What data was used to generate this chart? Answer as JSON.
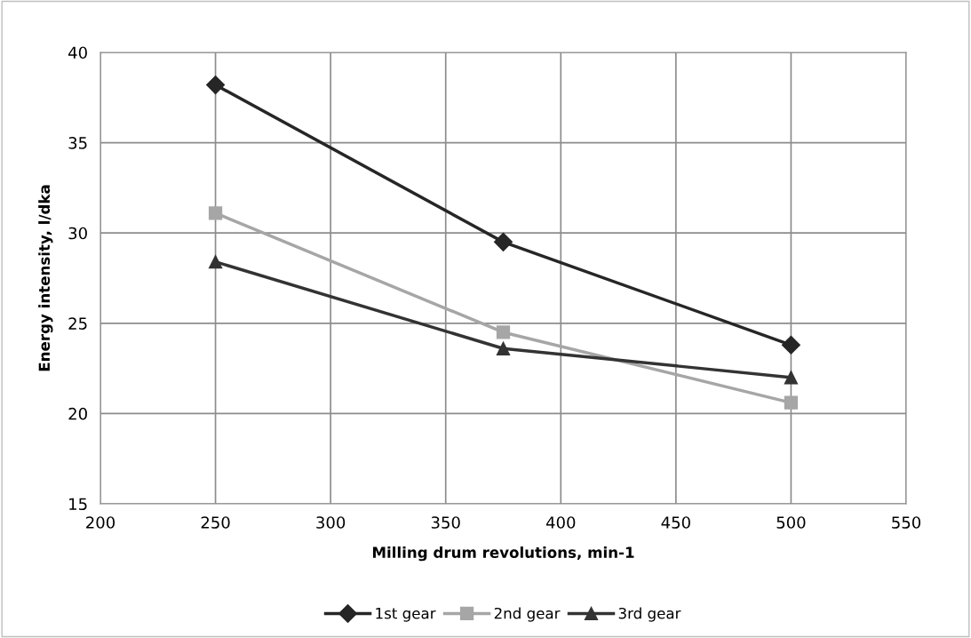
{
  "chart_data": {
    "type": "line",
    "xlabel": "Milling drum revolutions, min-1",
    "ylabel": "Energy intensity, l/dka",
    "x": [
      250,
      375,
      500
    ],
    "series": [
      {
        "name": "1st gear",
        "color": "#262626",
        "marker": "diamond",
        "values": [
          38.2,
          29.5,
          23.8
        ]
      },
      {
        "name": "2nd gear",
        "color": "#a6a6a6",
        "marker": "square",
        "values": [
          31.1,
          24.5,
          20.6
        ]
      },
      {
        "name": "3rd gear",
        "color": "#333333",
        "marker": "triangle",
        "values": [
          28.4,
          23.6,
          22.0
        ]
      }
    ],
    "xlim": [
      200,
      550
    ],
    "xticks": [
      200,
      250,
      300,
      350,
      400,
      450,
      500,
      550
    ],
    "ylim": [
      15,
      40
    ],
    "yticks": [
      15,
      20,
      25,
      30,
      35,
      40
    ],
    "grid": true,
    "legend": "bottom",
    "line_style": "solid"
  }
}
